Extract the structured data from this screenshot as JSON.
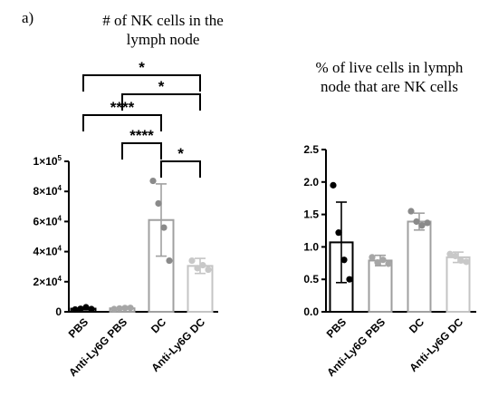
{
  "panel_label": "a)",
  "chart_data": [
    {
      "type": "bar",
      "title_lines": [
        "# of NK cells in the",
        "lymph node"
      ],
      "categories": [
        "PBS",
        "Anti-Ly6G PBS",
        "DC",
        "Anti-Ly6G DC"
      ],
      "values": [
        2100,
        2300,
        61000,
        30500
      ],
      "errors": [
        800,
        700,
        24000,
        5000
      ],
      "points": [
        [
          1500,
          2000,
          3000,
          1800
        ],
        [
          1800,
          2200,
          2500,
          2600
        ],
        [
          87000,
          72000,
          56000,
          34000
        ],
        [
          34000,
          29000,
          31000,
          28000
        ]
      ],
      "bar_colors": [
        "#000000",
        "#9e9e9e",
        "#a0a0a0",
        "#c4c4c4"
      ],
      "point_colors": [
        "#000000",
        "#a6a6a6",
        "#8a8a8a",
        "#c8c8c8"
      ],
      "ylim": [
        0,
        100000
      ],
      "yticks": [
        0,
        20000,
        40000,
        60000,
        80000,
        100000
      ],
      "ytick_labels": [
        {
          "m": "0",
          "e": ""
        },
        {
          "m": "2×10",
          "e": "4"
        },
        {
          "m": "4×10",
          "e": "4"
        },
        {
          "m": "6×10",
          "e": "4"
        },
        {
          "m": "8×10",
          "e": "4"
        },
        {
          "m": "1×10",
          "e": "5"
        }
      ],
      "significance": [
        {
          "from": 0,
          "to": 3,
          "label": "*"
        },
        {
          "from": 1,
          "to": 3,
          "label": "*"
        },
        {
          "from": 0,
          "to": 2,
          "label": "****"
        },
        {
          "from": 1,
          "to": 2,
          "label": "****"
        },
        {
          "from": 2,
          "to": 3,
          "label": "*"
        }
      ],
      "grid": false
    },
    {
      "type": "bar",
      "title_lines": [
        "% of live cells in lymph",
        "node that are NK cells"
      ],
      "categories": [
        "PBS",
        "Anti-Ly6G PBS",
        "DC",
        "Anti-Ly6G DC"
      ],
      "values": [
        1.07,
        0.79,
        1.39,
        0.84
      ],
      "errors": [
        0.62,
        0.08,
        0.13,
        0.08
      ],
      "points": [
        [
          1.95,
          1.22,
          0.8,
          0.5
        ],
        [
          0.84,
          0.76,
          0.8,
          0.74
        ],
        [
          1.55,
          1.39,
          1.33,
          1.37
        ],
        [
          0.89,
          0.86,
          0.79,
          0.77
        ]
      ],
      "bar_colors": [
        "#000000",
        "#9e9e9e",
        "#a0a0a0",
        "#c4c4c4"
      ],
      "point_colors": [
        "#000000",
        "#a6a6a6",
        "#8a8a8a",
        "#c8c8c8"
      ],
      "ylim": [
        0,
        2.5
      ],
      "yticks": [
        0,
        0.5,
        1.0,
        1.5,
        2.0,
        2.5
      ],
      "ytick_labels": [
        {
          "m": "0.0",
          "e": ""
        },
        {
          "m": "0.5",
          "e": ""
        },
        {
          "m": "1.0",
          "e": ""
        },
        {
          "m": "1.5",
          "e": ""
        },
        {
          "m": "2.0",
          "e": ""
        },
        {
          "m": "2.5",
          "e": ""
        }
      ],
      "significance": [],
      "grid": false
    }
  ]
}
